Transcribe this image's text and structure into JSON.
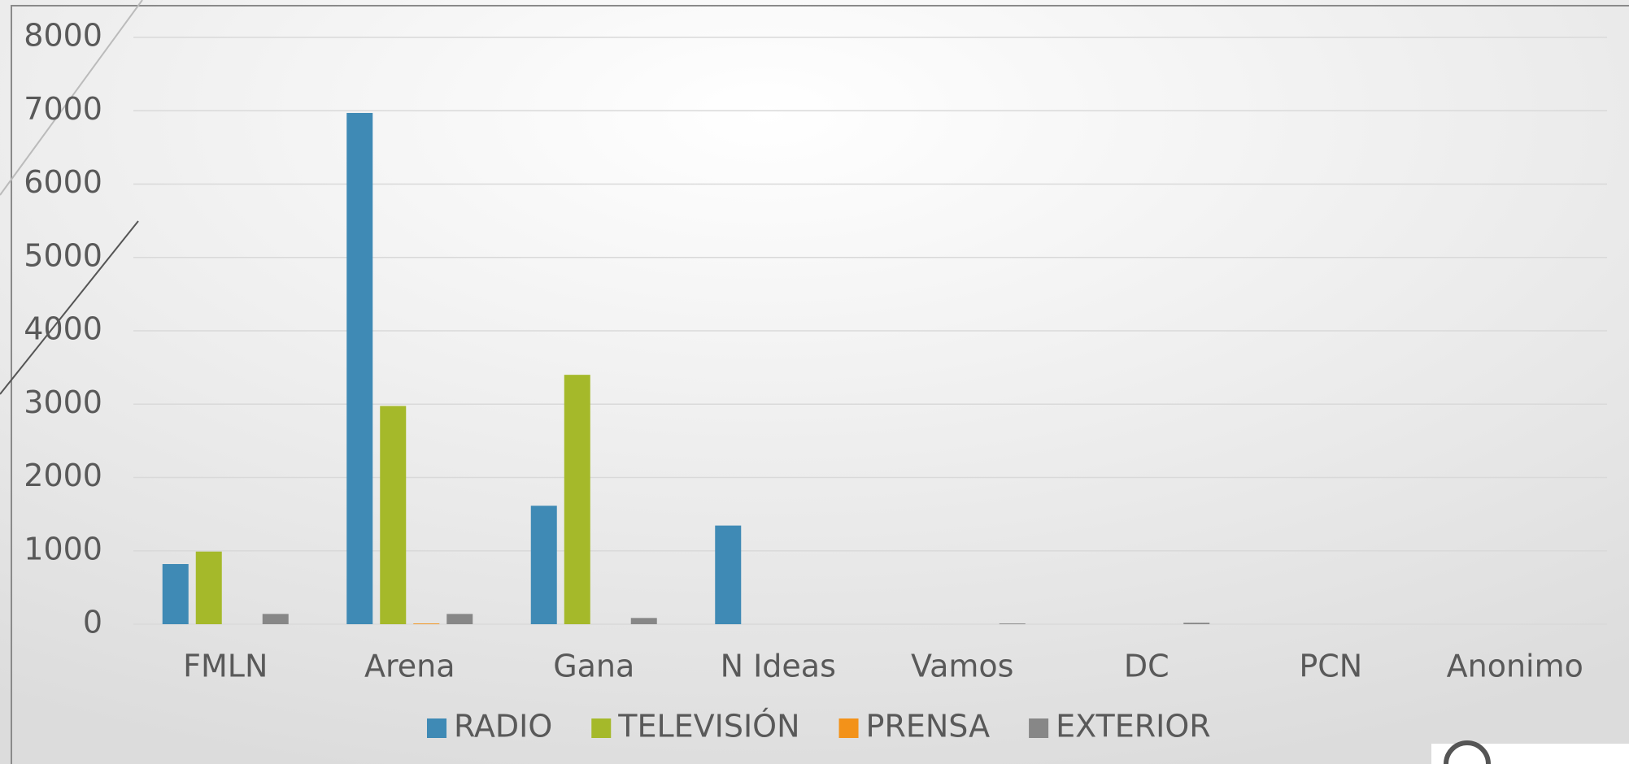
{
  "chart_data": {
    "type": "bar",
    "categories": [
      "FMLN",
      "Arena",
      "Gana",
      "N Ideas",
      "Vamos",
      "DC",
      "PCN",
      "Anonimo"
    ],
    "series": [
      {
        "name": "RADIO",
        "color": "#3f8ab5",
        "values": [
          820,
          6970,
          1615,
          1345,
          0,
          0,
          0,
          0
        ]
      },
      {
        "name": "TELEVISIÓN",
        "color": "#a5b92a",
        "values": [
          990,
          2975,
          3400,
          0,
          0,
          0,
          0,
          0
        ]
      },
      {
        "name": "PRENSA",
        "color": "#f39219",
        "values": [
          0,
          10,
          0,
          0,
          0,
          0,
          0,
          0
        ]
      },
      {
        "name": "EXTERIOR",
        "color": "#878787",
        "values": [
          140,
          140,
          85,
          0,
          10,
          20,
          0,
          0
        ]
      }
    ],
    "ylim": [
      0,
      8000
    ],
    "yticks": [
      0,
      1000,
      2000,
      3000,
      4000,
      5000,
      6000,
      7000,
      8000
    ],
    "grid": true,
    "legend": "bottom"
  }
}
